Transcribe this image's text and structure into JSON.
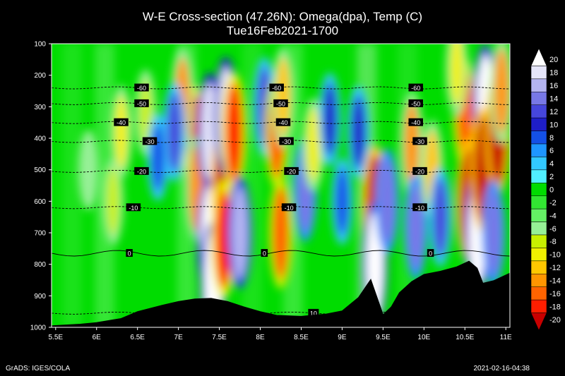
{
  "title": "W-E Cross-section (47.26N): Omega(dpa), Temp (C)",
  "subtitle": "Tue16Feb2021-1700",
  "credit": "GrADS: IGES/COLA",
  "timestamp": "2021-02-16-04:38",
  "chart_data": {
    "type": "heatmap",
    "x_ticks": [
      "5.5E",
      "6E",
      "6.5E",
      "7E",
      "7.5E",
      "8E",
      "8.5E",
      "9E",
      "9.5E",
      "10E",
      "10.5E",
      "11E"
    ],
    "x_values": [
      5.5,
      6,
      6.5,
      7,
      7.5,
      8,
      8.5,
      9,
      9.5,
      10,
      10.5,
      11
    ],
    "y_ticks": [
      100,
      200,
      300,
      400,
      500,
      600,
      700,
      800,
      900,
      1000
    ],
    "xlim": [
      5.45,
      11.05
    ],
    "ylim": [
      1000,
      100
    ],
    "colorbar": {
      "labels": [
        20,
        18,
        16,
        14,
        12,
        10,
        8,
        6,
        4,
        2,
        0,
        -2,
        -4,
        -6,
        -8,
        -10,
        -12,
        -14,
        -16,
        -18,
        -20
      ],
      "colors": [
        "#ffffff",
        "#e6e6fa",
        "#b4b4f0",
        "#7878e6",
        "#4646dc",
        "#1e1ec8",
        "#1450e6",
        "#1e96ff",
        "#32c8ff",
        "#50f0ff",
        "#00dc00",
        "#32e632",
        "#64f064",
        "#96f096",
        "#c8f000",
        "#f0f000",
        "#ffc800",
        "#ff9600",
        "#ff6400",
        "#ff1e00",
        "#c80000"
      ]
    },
    "temperature_isotherms": [
      {
        "label": "-60",
        "p": 240,
        "label_lons": [
          6.55,
          8.2,
          9.9
        ]
      },
      {
        "label": "-50",
        "p": 290,
        "label_lons": [
          6.55,
          8.25,
          9.9
        ]
      },
      {
        "label": "-40",
        "p": 350,
        "label_lons": [
          6.3,
          8.28,
          9.9
        ]
      },
      {
        "label": "-30",
        "p": 410,
        "label_lons": [
          6.65,
          8.32,
          9.95
        ]
      },
      {
        "label": "-20",
        "p": 505,
        "label_lons": [
          6.55,
          8.38,
          9.95
        ]
      },
      {
        "label": "-10",
        "p": 620,
        "label_lons": [
          6.45,
          8.35,
          9.95
        ]
      },
      {
        "label": "0",
        "p": 765,
        "label_lons": [
          6.4,
          8.05,
          10.08
        ]
      },
      {
        "label": "10",
        "p": 955,
        "label_lons": [
          8.65
        ]
      }
    ],
    "terrain_p": [
      [
        5.45,
        995
      ],
      [
        5.8,
        990
      ],
      [
        6.0,
        985
      ],
      [
        6.3,
        972
      ],
      [
        6.5,
        950
      ],
      [
        6.8,
        930
      ],
      [
        7.0,
        918
      ],
      [
        7.2,
        910
      ],
      [
        7.4,
        908
      ],
      [
        7.6,
        918
      ],
      [
        7.8,
        935
      ],
      [
        8.0,
        950
      ],
      [
        8.2,
        962
      ],
      [
        8.5,
        965
      ],
      [
        8.8,
        958
      ],
      [
        9.0,
        948
      ],
      [
        9.2,
        905
      ],
      [
        9.35,
        848
      ],
      [
        9.42,
        900
      ],
      [
        9.5,
        960
      ],
      [
        9.6,
        935
      ],
      [
        9.7,
        890
      ],
      [
        9.85,
        855
      ],
      [
        10.0,
        832
      ],
      [
        10.2,
        822
      ],
      [
        10.4,
        808
      ],
      [
        10.55,
        790
      ],
      [
        10.65,
        812
      ],
      [
        10.72,
        860
      ],
      [
        10.85,
        852
      ],
      [
        11.05,
        828
      ]
    ],
    "cells": [
      {
        "lon": 7.2,
        "p": 420,
        "v": -18
      },
      {
        "lon": 7.22,
        "p": 560,
        "v": -14
      },
      {
        "lon": 7.38,
        "p": 380,
        "v": 18
      },
      {
        "lon": 7.38,
        "p": 720,
        "v": 20
      },
      {
        "lon": 7.42,
        "p": 860,
        "v": 20
      },
      {
        "lon": 7.55,
        "p": 560,
        "v": -20
      },
      {
        "lon": 7.55,
        "p": 720,
        "v": -18
      },
      {
        "lon": 7.58,
        "p": 330,
        "v": 18
      },
      {
        "lon": 7.68,
        "p": 380,
        "v": -18
      },
      {
        "lon": 7.75,
        "p": 700,
        "v": 16
      },
      {
        "lon": 7.05,
        "p": 280,
        "v": -14
      },
      {
        "lon": 6.95,
        "p": 380,
        "v": 12
      },
      {
        "lon": 8.05,
        "p": 300,
        "v": 12
      },
      {
        "lon": 8.2,
        "p": 380,
        "v": -16
      },
      {
        "lon": 8.25,
        "p": 700,
        "v": -16
      },
      {
        "lon": 8.28,
        "p": 270,
        "v": -12
      },
      {
        "lon": 8.55,
        "p": 560,
        "v": 14
      },
      {
        "lon": 8.65,
        "p": 420,
        "v": -10
      },
      {
        "lon": 6.3,
        "p": 380,
        "v": -10
      },
      {
        "lon": 6.6,
        "p": 320,
        "v": -8
      },
      {
        "lon": 6.2,
        "p": 600,
        "v": -8
      },
      {
        "lon": 8.85,
        "p": 340,
        "v": 10
      },
      {
        "lon": 9.2,
        "p": 380,
        "v": 10
      },
      {
        "lon": 9.4,
        "p": 620,
        "v": -20
      },
      {
        "lon": 9.4,
        "p": 800,
        "v": 20
      },
      {
        "lon": 9.55,
        "p": 600,
        "v": 14
      },
      {
        "lon": 9.85,
        "p": 420,
        "v": -14
      },
      {
        "lon": 9.9,
        "p": 680,
        "v": 14
      },
      {
        "lon": 10.1,
        "p": 500,
        "v": -12
      },
      {
        "lon": 10.2,
        "p": 650,
        "v": 12
      },
      {
        "lon": 10.5,
        "p": 320,
        "v": -16
      },
      {
        "lon": 10.55,
        "p": 600,
        "v": -20
      },
      {
        "lon": 10.65,
        "p": 700,
        "v": 20
      },
      {
        "lon": 10.75,
        "p": 300,
        "v": 20
      },
      {
        "lon": 10.72,
        "p": 500,
        "v": -20
      },
      {
        "lon": 10.9,
        "p": 380,
        "v": -20
      },
      {
        "lon": 10.85,
        "p": 700,
        "v": 14
      },
      {
        "lon": 10.95,
        "p": 250,
        "v": -14
      },
      {
        "lon": 5.9,
        "p": 500,
        "v": -6
      },
      {
        "lon": 6.75,
        "p": 460,
        "v": 8
      },
      {
        "lon": 9.0,
        "p": 600,
        "v": 8
      },
      {
        "lon": 10.4,
        "p": 180,
        "v": -10
      }
    ]
  }
}
